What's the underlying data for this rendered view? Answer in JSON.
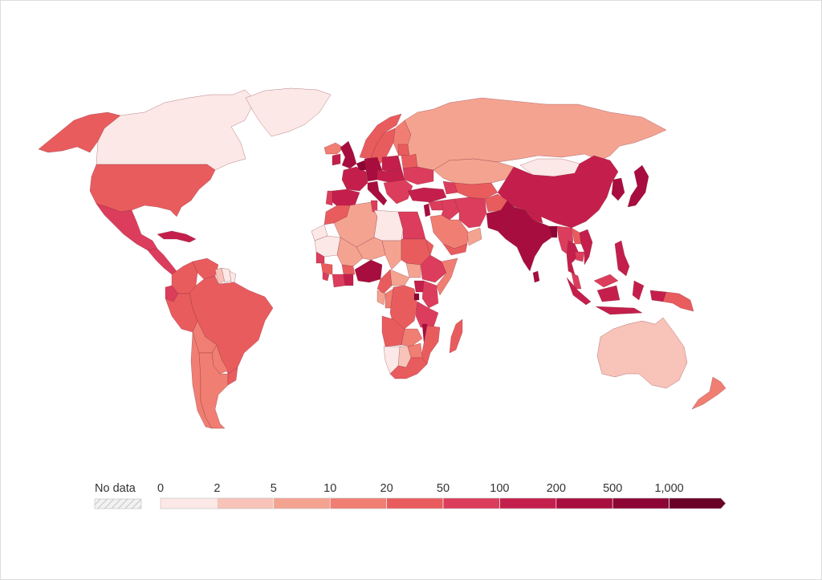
{
  "legend": {
    "no_data_label": "No data",
    "tick_labels": [
      "0",
      "2",
      "5",
      "10",
      "20",
      "50",
      "100",
      "200",
      "500",
      "1,000"
    ],
    "bins": [
      {
        "from": "0",
        "to": "2",
        "color": "#fce8e6"
      },
      {
        "from": "2",
        "to": "5",
        "color": "#f8c3b8"
      },
      {
        "from": "5",
        "to": "10",
        "color": "#f4a391"
      },
      {
        "from": "10",
        "to": "20",
        "color": "#f07e72"
      },
      {
        "from": "20",
        "to": "50",
        "color": "#e95c5e"
      },
      {
        "from": "50",
        "to": "100",
        "color": "#dc3d5c"
      },
      {
        "from": "100",
        "to": "200",
        "color": "#c41f4c"
      },
      {
        "from": "200",
        "to": "500",
        "color": "#a80d3f"
      },
      {
        "from": "500",
        "to": "1,000",
        "color": "#8c0535"
      },
      {
        "from": "1,000",
        "to": "",
        "color": "#6b0027"
      }
    ],
    "scale": "logarithmic-like binned",
    "open_ended_top": true
  },
  "regions": [
    {
      "name": "Alaska",
      "bin": 4
    },
    {
      "name": "Canada",
      "bin": 0
    },
    {
      "name": "Greenland",
      "bin": 0
    },
    {
      "name": "United States",
      "bin": 4
    },
    {
      "name": "Mexico",
      "bin": 5
    },
    {
      "name": "Central America",
      "bin": 5
    },
    {
      "name": "Caribbean",
      "bin": 6
    },
    {
      "name": "Colombia",
      "bin": 4
    },
    {
      "name": "Venezuela",
      "bin": 4
    },
    {
      "name": "Guyana",
      "bin": 1
    },
    {
      "name": "Suriname",
      "bin": 0
    },
    {
      "name": "French Guiana",
      "bin": 0
    },
    {
      "name": "Ecuador",
      "bin": 5
    },
    {
      "name": "Peru",
      "bin": 4
    },
    {
      "name": "Brazil",
      "bin": 4
    },
    {
      "name": "Bolivia",
      "bin": 3
    },
    {
      "name": "Paraguay",
      "bin": 3
    },
    {
      "name": "Chile",
      "bin": 3
    },
    {
      "name": "Argentina",
      "bin": 3
    },
    {
      "name": "Uruguay",
      "bin": 4
    },
    {
      "name": "Iceland",
      "bin": 3
    },
    {
      "name": "Norway",
      "bin": 4
    },
    {
      "name": "Sweden",
      "bin": 4
    },
    {
      "name": "Finland",
      "bin": 3
    },
    {
      "name": "United Kingdom",
      "bin": 7
    },
    {
      "name": "Ireland",
      "bin": 6
    },
    {
      "name": "France",
      "bin": 6
    },
    {
      "name": "Germany",
      "bin": 7
    },
    {
      "name": "Benelux",
      "bin": 8
    },
    {
      "name": "Spain",
      "bin": 6
    },
    {
      "name": "Portugal",
      "bin": 5
    },
    {
      "name": "Italy",
      "bin": 7
    },
    {
      "name": "Poland",
      "bin": 6
    },
    {
      "name": "Central Europe",
      "bin": 6
    },
    {
      "name": "Balkans",
      "bin": 5
    },
    {
      "name": "Baltics",
      "bin": 4
    },
    {
      "name": "Belarus",
      "bin": 4
    },
    {
      "name": "Ukraine",
      "bin": 5
    },
    {
      "name": "Russia",
      "bin": 2
    },
    {
      "name": "Turkey",
      "bin": 6
    },
    {
      "name": "Caucasus",
      "bin": 5
    },
    {
      "name": "Kazakhstan",
      "bin": 2
    },
    {
      "name": "Central Asia",
      "bin": 4
    },
    {
      "name": "Mongolia",
      "bin": 0
    },
    {
      "name": "China",
      "bin": 6
    },
    {
      "name": "Korea",
      "bin": 7
    },
    {
      "name": "Japan",
      "bin": 7
    },
    {
      "name": "Iran",
      "bin": 5
    },
    {
      "name": "Iraq",
      "bin": 5
    },
    {
      "name": "Syria",
      "bin": 5
    },
    {
      "name": "Levant",
      "bin": 7
    },
    {
      "name": "Saudi Arabia",
      "bin": 3
    },
    {
      "name": "Yemen",
      "bin": 4
    },
    {
      "name": "Oman",
      "bin": 2
    },
    {
      "name": "Afghanistan",
      "bin": 4
    },
    {
      "name": "Pakistan",
      "bin": 7
    },
    {
      "name": "India",
      "bin": 7
    },
    {
      "name": "Nepal",
      "bin": 6
    },
    {
      "name": "Bangladesh",
      "bin": 8
    },
    {
      "name": "Sri Lanka",
      "bin": 7
    },
    {
      "name": "Myanmar",
      "bin": 5
    },
    {
      "name": "Thailand",
      "bin": 6
    },
    {
      "name": "Laos",
      "bin": 4
    },
    {
      "name": "Vietnam",
      "bin": 6
    },
    {
      "name": "Cambodia",
      "bin": 5
    },
    {
      "name": "Malaysia",
      "bin": 5
    },
    {
      "name": "Philippines",
      "bin": 6
    },
    {
      "name": "Indonesia",
      "bin": 6
    },
    {
      "name": "Papua New Guinea",
      "bin": 4
    },
    {
      "name": "Australia",
      "bin": 1
    },
    {
      "name": "New Zealand",
      "bin": 3
    },
    {
      "name": "Morocco",
      "bin": 4
    },
    {
      "name": "Western Sahara",
      "bin": 0
    },
    {
      "name": "Algeria",
      "bin": 2
    },
    {
      "name": "Tunisia",
      "bin": 5
    },
    {
      "name": "Libya",
      "bin": 0
    },
    {
      "name": "Egypt",
      "bin": 5
    },
    {
      "name": "Mauritania",
      "bin": 0
    },
    {
      "name": "Mali",
      "bin": 2
    },
    {
      "name": "Niger",
      "bin": 2
    },
    {
      "name": "Chad",
      "bin": 2
    },
    {
      "name": "Sudan",
      "bin": 4
    },
    {
      "name": "South Sudan",
      "bin": 2
    },
    {
      "name": "Ethiopia",
      "bin": 5
    },
    {
      "name": "Eritrea",
      "bin": 4
    },
    {
      "name": "Somalia",
      "bin": 3
    },
    {
      "name": "Senegal",
      "bin": 5
    },
    {
      "name": "Guinea",
      "bin": 4
    },
    {
      "name": "Sierra Leone",
      "bin": 5
    },
    {
      "name": "Cote d'Ivoire",
      "bin": 5
    },
    {
      "name": "Burkina Faso",
      "bin": 4
    },
    {
      "name": "Ghana",
      "bin": 6
    },
    {
      "name": "Nigeria",
      "bin": 7
    },
    {
      "name": "Cameroon",
      "bin": 4
    },
    {
      "name": "Central African Republic",
      "bin": 2
    },
    {
      "name": "Gabon",
      "bin": 2
    },
    {
      "name": "Congo",
      "bin": 3
    },
    {
      "name": "DR Congo",
      "bin": 4
    },
    {
      "name": "Uganda",
      "bin": 6
    },
    {
      "name": "Kenya",
      "bin": 5
    },
    {
      "name": "Rwanda",
      "bin": 8
    },
    {
      "name": "Tanzania",
      "bin": 5
    },
    {
      "name": "Angola",
      "bin": 4
    },
    {
      "name": "Zambia",
      "bin": 3
    },
    {
      "name": "Malawi",
      "bin": 7
    },
    {
      "name": "Mozambique",
      "bin": 4
    },
    {
      "name": "Zimbabwe",
      "bin": 3
    },
    {
      "name": "Namibia",
      "bin": 0
    },
    {
      "name": "Botswana",
      "bin": 1
    },
    {
      "name": "South Africa",
      "bin": 4
    },
    {
      "name": "Madagascar",
      "bin": 4
    }
  ]
}
